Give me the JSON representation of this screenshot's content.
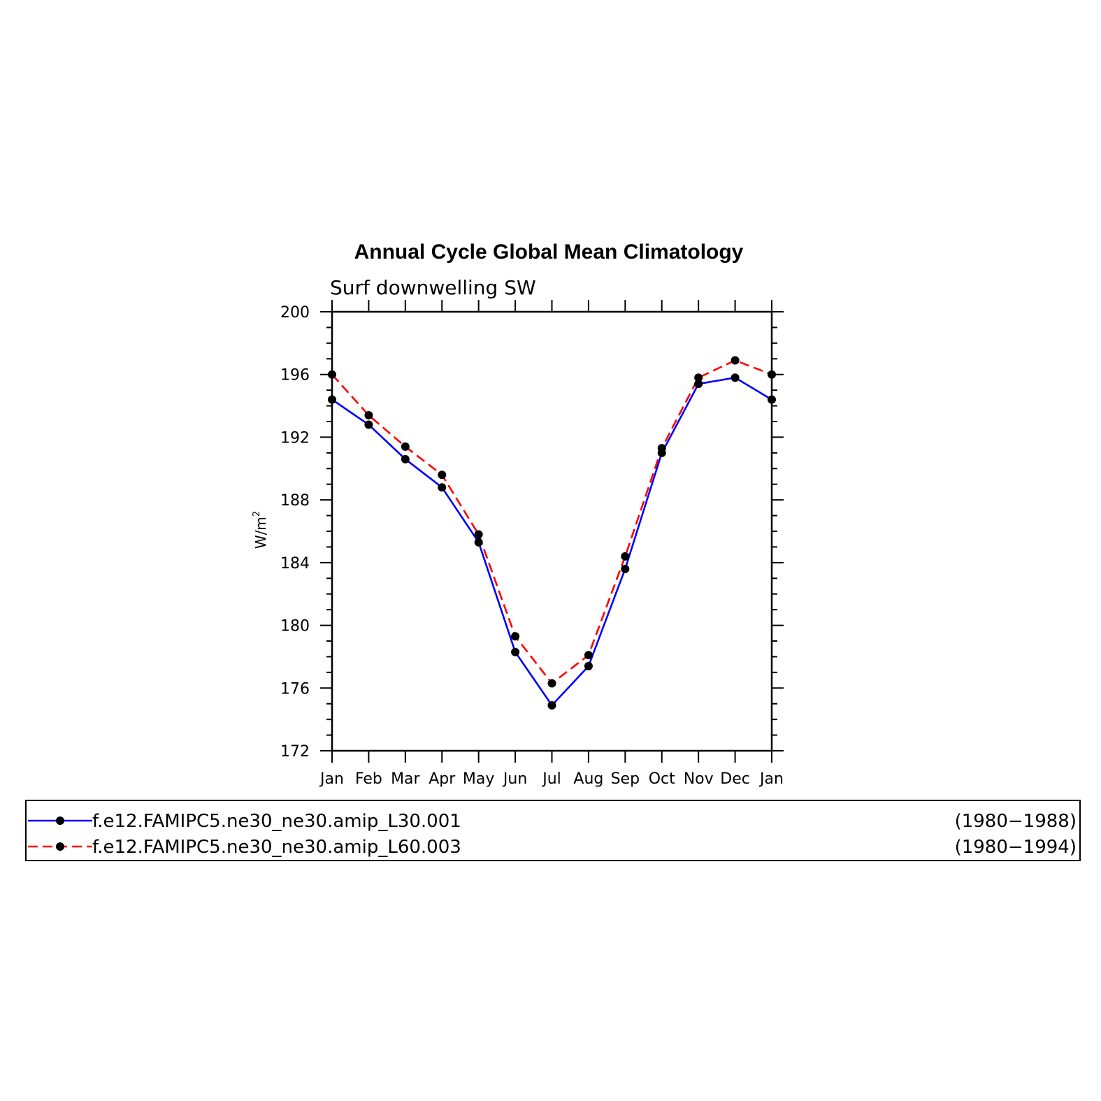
{
  "chart_data": {
    "type": "line",
    "title": "Annual Cycle Global Mean Climatology",
    "subtitle": "Surf downwelling SW",
    "ylabel": "W/m",
    "ylabel_superscript": "2",
    "ylim": [
      172,
      200
    ],
    "yticks": [
      172,
      176,
      180,
      184,
      188,
      192,
      196,
      200
    ],
    "categories": [
      "Jan",
      "Feb",
      "Mar",
      "Apr",
      "May",
      "Jun",
      "Jul",
      "Aug",
      "Sep",
      "Oct",
      "Nov",
      "Dec",
      "Jan"
    ],
    "series": [
      {
        "name": "f.e12.FAMIPC5.ne30_ne30.amip_L30.001",
        "period": "(1980−1988)",
        "color": "#0000ff",
        "line_style": "solid",
        "marker": "filled-circle",
        "values": [
          194.4,
          192.8,
          190.6,
          188.8,
          185.3,
          178.3,
          174.9,
          177.4,
          183.6,
          191.0,
          195.4,
          195.8,
          194.4
        ]
      },
      {
        "name": "f.e12.FAMIPC5.ne30_ne30.amip_L60.003",
        "period": "(1980−1994)",
        "color": "#ff0000",
        "line_style": "dashed",
        "marker": "filled-circle",
        "values": [
          196.0,
          193.4,
          191.4,
          189.6,
          185.8,
          179.3,
          176.3,
          178.1,
          184.4,
          191.3,
          195.8,
          196.9,
          196.0
        ]
      }
    ],
    "grid": false,
    "legend_position": "bottom"
  }
}
